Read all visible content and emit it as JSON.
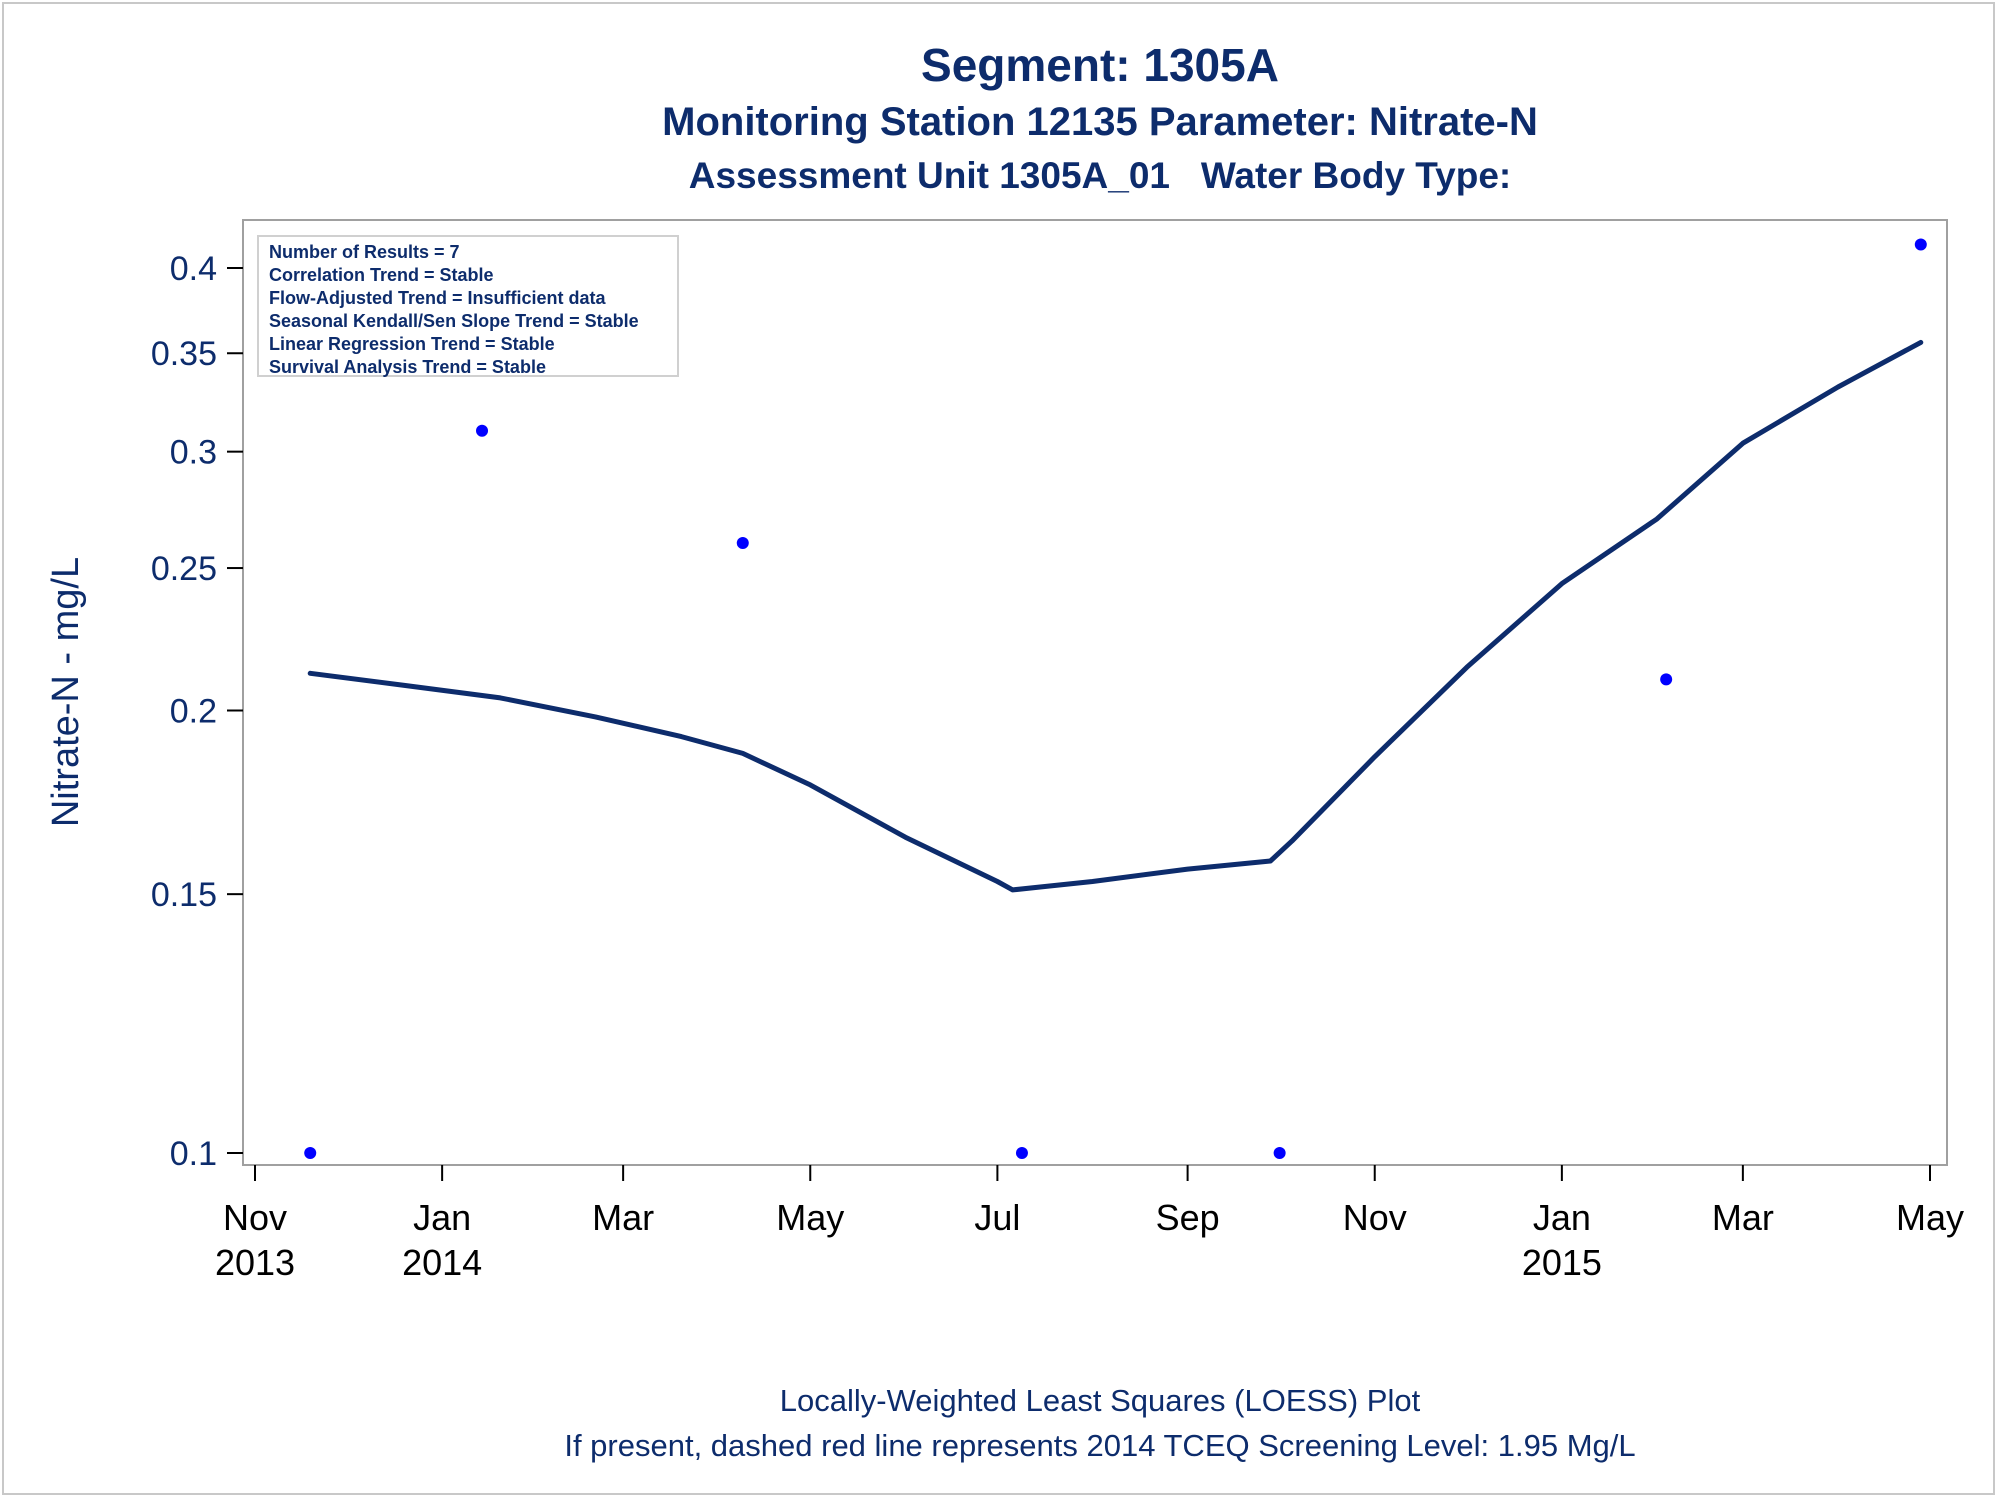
{
  "titles": {
    "line1": "Segment: 1305A",
    "line2": "Monitoring Station 12135 Parameter: Nitrate-N",
    "line3": "Assessment Unit 1305A_01   Water Body Type:"
  },
  "footnotes": {
    "line1": "Locally-Weighted Least Squares (LOESS) Plot",
    "line2": "If present, dashed red line represents 2014 TCEQ Screening Level: 1.95 Mg/L"
  },
  "stats_box": {
    "lines": [
      "Number of Results = 7",
      "Correlation Trend = Stable",
      "Flow-Adjusted Trend = Insufficient data",
      "Seasonal Kendall/Sen Slope Trend = Stable",
      "Linear Regression Trend = Stable",
      "Survival Analysis Trend = Stable"
    ]
  },
  "chart_data": {
    "type": "scatter",
    "title": "",
    "xlabel": "",
    "ylabel": "Nitrate-N - mg/L",
    "y_scale": "log",
    "ylim": [
      0.1,
      0.42
    ],
    "xlim": [
      "2013-10-27",
      "2015-05-12"
    ],
    "yticks": [
      {
        "value": 0.1,
        "label": "0.1"
      },
      {
        "value": 0.15,
        "label": "0.15"
      },
      {
        "value": 0.2,
        "label": "0.2"
      },
      {
        "value": 0.25,
        "label": "0.25"
      },
      {
        "value": 0.3,
        "label": "0.3"
      },
      {
        "value": 0.35,
        "label": "0.35"
      },
      {
        "value": 0.4,
        "label": "0.4"
      }
    ],
    "xticks": [
      {
        "date": "2013-11-01",
        "month": "Nov",
        "year": "2013"
      },
      {
        "date": "2014-01-01",
        "month": "Jan",
        "year": "2014"
      },
      {
        "date": "2014-03-01",
        "month": "Mar",
        "year": ""
      },
      {
        "date": "2014-05-01",
        "month": "May",
        "year": ""
      },
      {
        "date": "2014-07-01",
        "month": "Jul",
        "year": ""
      },
      {
        "date": "2014-09-01",
        "month": "Sep",
        "year": ""
      },
      {
        "date": "2014-11-01",
        "month": "Nov",
        "year": ""
      },
      {
        "date": "2015-01-01",
        "month": "Jan",
        "year": "2015"
      },
      {
        "date": "2015-03-01",
        "month": "Mar",
        "year": ""
      },
      {
        "date": "2015-05-01",
        "month": "May",
        "year": ""
      }
    ],
    "points": [
      {
        "date": "2013-11-19",
        "y": 0.1
      },
      {
        "date": "2014-01-14",
        "y": 0.31
      },
      {
        "date": "2014-04-09",
        "y": 0.26
      },
      {
        "date": "2014-07-09",
        "y": 0.1
      },
      {
        "date": "2014-10-01",
        "y": 0.1
      },
      {
        "date": "2015-02-04",
        "y": 0.21
      },
      {
        "date": "2015-04-28",
        "y": 0.415
      }
    ],
    "loess": [
      {
        "date": "2013-11-19",
        "y": 0.212
      },
      {
        "date": "2013-12-20",
        "y": 0.208
      },
      {
        "date": "2014-01-20",
        "y": 0.204
      },
      {
        "date": "2014-02-20",
        "y": 0.198
      },
      {
        "date": "2014-03-20",
        "y": 0.192
      },
      {
        "date": "2014-04-09",
        "y": 0.187
      },
      {
        "date": "2014-05-01",
        "y": 0.178
      },
      {
        "date": "2014-06-01",
        "y": 0.164
      },
      {
        "date": "2014-07-01",
        "y": 0.153
      },
      {
        "date": "2014-07-06",
        "y": 0.151
      },
      {
        "date": "2014-08-01",
        "y": 0.153
      },
      {
        "date": "2014-09-01",
        "y": 0.156
      },
      {
        "date": "2014-09-28",
        "y": 0.158
      },
      {
        "date": "2014-10-05",
        "y": 0.163
      },
      {
        "date": "2014-11-01",
        "y": 0.186
      },
      {
        "date": "2014-12-01",
        "y": 0.214
      },
      {
        "date": "2015-01-01",
        "y": 0.244
      },
      {
        "date": "2015-02-01",
        "y": 0.27
      },
      {
        "date": "2015-03-01",
        "y": 0.304
      },
      {
        "date": "2015-04-01",
        "y": 0.332
      },
      {
        "date": "2015-04-28",
        "y": 0.356
      }
    ],
    "colors": {
      "points": "#0000ff",
      "loess": "#0d2c6c",
      "text": "#0d2c6c",
      "ticks": "#000000",
      "frame": "#a0a0a0"
    },
    "grid": false,
    "legend_placement": "top-left"
  }
}
